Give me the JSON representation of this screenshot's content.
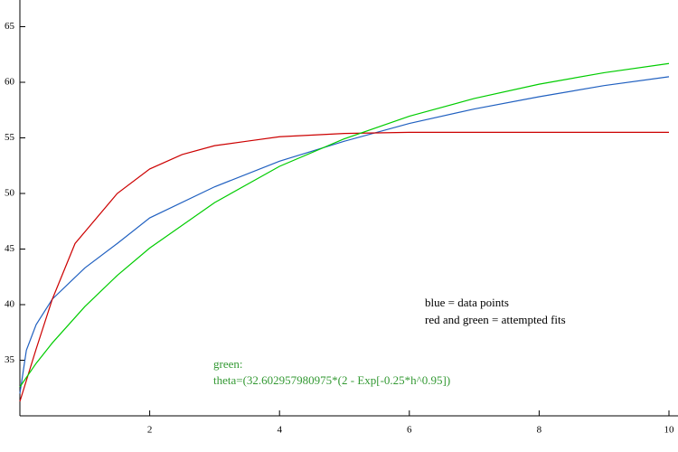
{
  "chart_data": {
    "type": "line",
    "xlim": [
      0,
      10
    ],
    "ylim": [
      30,
      67.4
    ],
    "xticks": [
      2,
      4,
      6,
      8,
      10
    ],
    "yticks": [
      35,
      40,
      45,
      50,
      55,
      60,
      65
    ],
    "series": [
      {
        "name": "blue",
        "color": "#2060c0",
        "x": [
          0,
          0.1,
          0.25,
          0.5,
          1,
          1.5,
          2,
          3,
          4,
          5,
          6,
          7,
          8,
          9,
          10
        ],
        "values": [
          32,
          35.9,
          38.2,
          40.5,
          43.3,
          45.5,
          47.8,
          50.6,
          52.9,
          54.7,
          56.3,
          57.6,
          58.7,
          59.7,
          60.5
        ]
      },
      {
        "name": "red",
        "color": "#cc0000",
        "x": [
          0,
          0.25,
          0.5,
          0.85,
          1.5,
          2,
          2.5,
          3,
          3.5,
          4,
          5,
          6,
          8,
          10
        ],
        "values": [
          31.3,
          36,
          40.5,
          45.5,
          50,
          52.2,
          53.5,
          54.3,
          54.7,
          55.1,
          55.4,
          55.5,
          55.5,
          55.5
        ]
      },
      {
        "name": "green",
        "color": "#00cc00",
        "x": [
          0,
          0.25,
          0.5,
          1,
          1.5,
          2,
          3,
          4,
          5,
          6,
          7,
          8,
          9,
          10
        ],
        "values": [
          32.6,
          34.72,
          36.56,
          39.82,
          42.63,
          45.09,
          49.18,
          52.44,
          54.92,
          56.95,
          58.54,
          59.83,
          60.86,
          61.69
        ]
      }
    ],
    "annotations": [
      "blue = data points",
      "red and green = attempted fits",
      "green:",
      "theta=(32.602957980975*(2 - Exp[-0.25*h^0.95])"
    ]
  }
}
